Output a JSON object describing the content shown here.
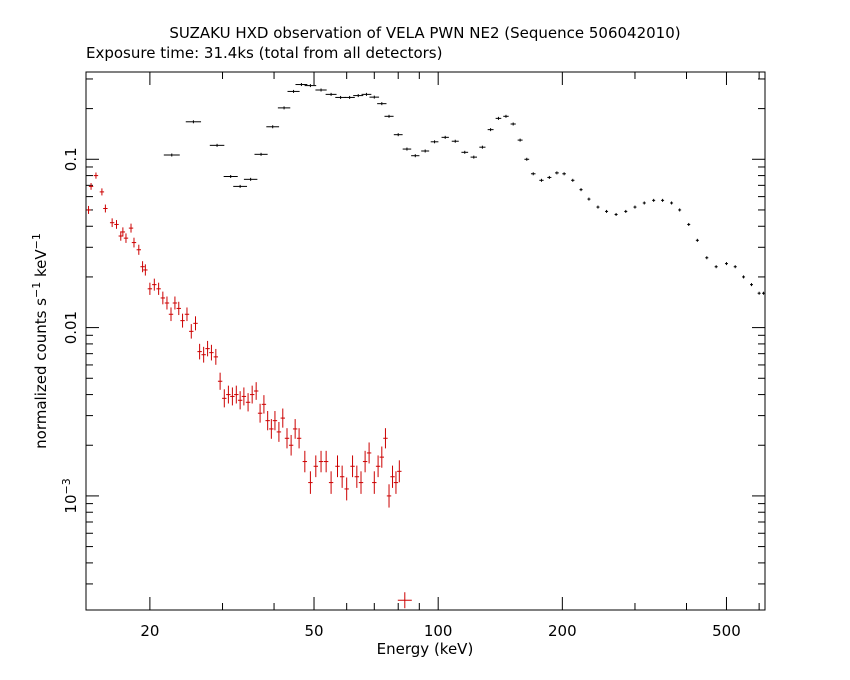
{
  "chart_data": {
    "type": "scatter",
    "title": "SUZAKU HXD observation of VELA PWN NE2 (Sequence 506042010)",
    "subtitle": "Exposure time: 31.4ks (total from all detectors)",
    "xlabel": "Energy (keV)",
    "ylabel_main": "normalized counts s",
    "ylabel_mid": " keV",
    "ylabel_exp": "−1",
    "x_scale": "log",
    "y_scale": "log",
    "xlim": [
      14,
      620
    ],
    "ylim": [
      0.00021,
      0.33
    ],
    "x_ticks": [
      {
        "value": 20,
        "label": "20"
      },
      {
        "value": 50,
        "label": "50"
      },
      {
        "value": 100,
        "label": "100"
      },
      {
        "value": 200,
        "label": "200"
      },
      {
        "value": 500,
        "label": "500"
      }
    ],
    "y_ticks": [
      {
        "value": 0.1,
        "label": "0.1"
      },
      {
        "value": 0.01,
        "label": "0.01"
      },
      {
        "value": 0.001,
        "label": "10",
        "exp": "−3"
      }
    ],
    "grid": false,
    "legend": "none",
    "series": [
      {
        "color": "#000000",
        "style": "crosses",
        "points": [
          [
            22.6,
            0.106
          ],
          [
            25.5,
            0.167
          ],
          [
            29.1,
            0.121
          ],
          [
            31.4,
            0.079
          ],
          [
            33.1,
            0.069
          ],
          [
            35.1,
            0.076
          ],
          [
            37.2,
            0.107
          ],
          [
            39.7,
            0.156
          ],
          [
            42.3,
            0.202
          ],
          [
            44.6,
            0.253
          ],
          [
            46.6,
            0.278
          ],
          [
            49.0,
            0.274
          ],
          [
            52.0,
            0.258
          ],
          [
            55.0,
            0.243
          ],
          [
            58.0,
            0.233
          ],
          [
            61.0,
            0.233
          ],
          [
            64.0,
            0.239
          ],
          [
            67.0,
            0.243
          ],
          [
            70.0,
            0.234
          ],
          [
            73.0,
            0.214
          ],
          [
            76.0,
            0.18
          ],
          [
            80.0,
            0.14
          ],
          [
            84.0,
            0.115
          ],
          [
            88.0,
            0.105
          ],
          [
            93.0,
            0.112
          ],
          [
            98.0,
            0.127
          ],
          [
            104.0,
            0.135
          ],
          [
            110.0,
            0.128
          ],
          [
            116.0,
            0.11
          ],
          [
            122.0,
            0.103
          ],
          [
            128.0,
            0.118
          ],
          [
            134.0,
            0.15
          ],
          [
            140.0,
            0.175
          ],
          [
            146.0,
            0.18
          ],
          [
            152.0,
            0.162
          ],
          [
            158.0,
            0.13
          ],
          [
            164.0,
            0.1
          ],
          [
            170.0,
            0.082
          ],
          [
            178.0,
            0.075
          ],
          [
            186.0,
            0.078
          ],
          [
            194.0,
            0.083
          ],
          [
            202.0,
            0.082
          ],
          [
            212.0,
            0.075
          ],
          [
            222.0,
            0.066
          ],
          [
            232.0,
            0.058
          ],
          [
            244.0,
            0.052
          ],
          [
            256.0,
            0.049
          ],
          [
            270.0,
            0.047
          ],
          [
            285.0,
            0.049
          ],
          [
            300.0,
            0.052
          ],
          [
            316.0,
            0.055
          ],
          [
            333.0,
            0.057
          ],
          [
            350.0,
            0.057
          ],
          [
            368.0,
            0.055
          ],
          [
            385.0,
            0.05
          ],
          [
            405.0,
            0.041
          ],
          [
            425.0,
            0.033
          ],
          [
            448.0,
            0.026
          ],
          [
            472.0,
            0.023
          ],
          [
            500.0,
            0.024
          ],
          [
            525.0,
            0.023
          ],
          [
            550.0,
            0.02
          ],
          [
            575.0,
            0.018
          ],
          [
            600.0,
            0.016
          ],
          [
            615.0,
            0.016
          ]
        ]
      },
      {
        "color": "#cc0000",
        "style": "crosses",
        "points": [
          [
            14.2,
            0.05
          ],
          [
            14.4,
            0.069
          ],
          [
            14.8,
            0.08
          ],
          [
            15.3,
            0.064
          ],
          [
            15.6,
            0.051
          ],
          [
            16.2,
            0.042
          ],
          [
            16.6,
            0.041
          ],
          [
            17.0,
            0.035
          ],
          [
            17.2,
            0.037
          ],
          [
            17.5,
            0.034
          ],
          [
            18.0,
            0.039
          ],
          [
            18.3,
            0.032
          ],
          [
            18.8,
            0.029
          ],
          [
            19.2,
            0.023
          ],
          [
            19.5,
            0.022
          ],
          [
            20.0,
            0.017
          ],
          [
            20.5,
            0.018
          ],
          [
            21.0,
            0.017
          ],
          [
            21.5,
            0.015
          ],
          [
            22.0,
            0.014
          ],
          [
            22.5,
            0.012
          ],
          [
            23.0,
            0.014
          ],
          [
            23.5,
            0.013
          ],
          [
            24.0,
            0.011
          ],
          [
            24.6,
            0.012
          ],
          [
            25.2,
            0.0095
          ],
          [
            25.8,
            0.0106
          ],
          [
            26.4,
            0.0072
          ],
          [
            27.0,
            0.0069
          ],
          [
            27.6,
            0.0075
          ],
          [
            28.2,
            0.0071
          ],
          [
            28.9,
            0.0067
          ],
          [
            29.6,
            0.0048
          ],
          [
            30.3,
            0.0038
          ],
          [
            31.0,
            0.004
          ],
          [
            31.7,
            0.0039
          ],
          [
            32.4,
            0.004
          ],
          [
            33.1,
            0.0037
          ],
          [
            33.8,
            0.0039
          ],
          [
            34.6,
            0.0036
          ],
          [
            35.4,
            0.004
          ],
          [
            36.2,
            0.0042
          ],
          [
            37.0,
            0.0031
          ],
          [
            37.8,
            0.0035
          ],
          [
            38.6,
            0.0028
          ],
          [
            39.4,
            0.0025
          ],
          [
            40.2,
            0.0028
          ],
          [
            41.1,
            0.0024
          ],
          [
            42.0,
            0.0029
          ],
          [
            43.0,
            0.0022
          ],
          [
            44.0,
            0.002
          ],
          [
            45.0,
            0.0025
          ],
          [
            46.0,
            0.0022
          ],
          [
            47.5,
            0.0016
          ],
          [
            49.0,
            0.0012
          ],
          [
            50.5,
            0.0015
          ],
          [
            52.0,
            0.0016
          ],
          [
            53.5,
            0.0016
          ],
          [
            55.0,
            0.0012
          ],
          [
            57.0,
            0.0015
          ],
          [
            58.5,
            0.0013
          ],
          [
            60.0,
            0.0011
          ],
          [
            62.0,
            0.0015
          ],
          [
            63.5,
            0.0013
          ],
          [
            65.0,
            0.0012
          ],
          [
            66.5,
            0.0016
          ],
          [
            68.0,
            0.0018
          ],
          [
            70.0,
            0.0012
          ],
          [
            71.5,
            0.0015
          ],
          [
            73.0,
            0.0017
          ],
          [
            74.5,
            0.0022
          ],
          [
            76.0,
            0.001
          ],
          [
            77.5,
            0.0013
          ],
          [
            79.0,
            0.0012
          ],
          [
            80.5,
            0.0014
          ],
          [
            83.0,
            0.00024
          ]
        ]
      }
    ]
  }
}
